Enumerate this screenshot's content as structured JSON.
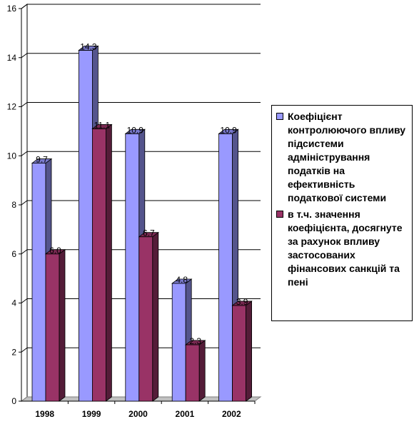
{
  "chart_data": {
    "type": "bar",
    "categories": [
      "1998",
      "1999",
      "2000",
      "2001",
      "2002"
    ],
    "series": [
      {
        "name": "Коефіцієнт контролюючого впливу підсистеми адміністрування податків на ефективність податкової системи",
        "values": [
          9.7,
          14.3,
          10.9,
          4.8,
          10.9
        ],
        "value_labels": [
          "9.7",
          "14.3",
          "10.9",
          "4.8",
          "10.9"
        ],
        "color": "#9999ff"
      },
      {
        "name": "в т.ч. значення коефіцієнта, досягнуте за рахунок впливу застосованих фінансових санкцій та пені",
        "values": [
          6.0,
          11.1,
          6.7,
          2.3,
          3.9
        ],
        "value_labels": [
          "6.0",
          "11.1",
          "6.7",
          "2.3",
          "3.9"
        ],
        "color": "#993366"
      }
    ],
    "ylim": [
      0,
      16
    ],
    "yticks": [
      "0",
      "2",
      "4",
      "6",
      "8",
      "10",
      "12",
      "14",
      "16"
    ],
    "grid": true,
    "legend_position": "right",
    "style": "3d"
  }
}
